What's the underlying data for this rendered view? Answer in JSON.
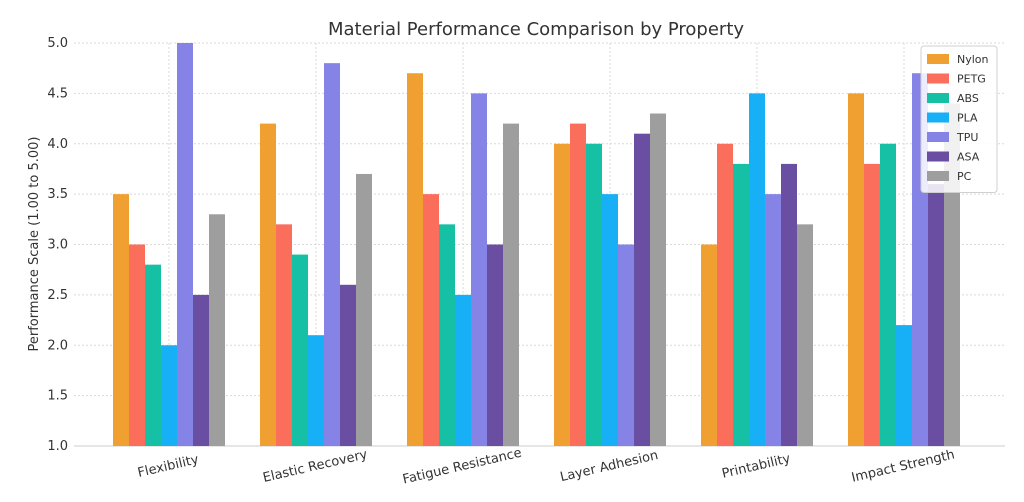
{
  "chart_data": {
    "type": "bar",
    "title": "Material Performance Comparison by Property",
    "xlabel": "",
    "ylabel": "Performance Scale (1.00 to 5.00)",
    "ylim": [
      1.0,
      5.0
    ],
    "yticks": [
      "1.0",
      "1.5",
      "2.0",
      "2.5",
      "3.0",
      "3.5",
      "4.0",
      "4.5",
      "5.0"
    ],
    "grid": true,
    "legend_position": "top-right",
    "categories": [
      "Flexibility",
      "Elastic Recovery",
      "Fatigue Resistance",
      "Layer Adhesion",
      "Printability",
      "Impact Strength"
    ],
    "series": [
      {
        "name": "Nylon",
        "color": "#f0a030",
        "values": [
          3.5,
          4.2,
          4.7,
          4.0,
          3.0,
          4.5
        ]
      },
      {
        "name": "PETG",
        "color": "#fb6e5c",
        "values": [
          3.0,
          3.2,
          3.5,
          4.2,
          4.0,
          3.8
        ]
      },
      {
        "name": "ABS",
        "color": "#16c0a4",
        "values": [
          2.8,
          2.9,
          3.2,
          4.0,
          3.8,
          4.0
        ]
      },
      {
        "name": "PLA",
        "color": "#17aff6",
        "values": [
          2.0,
          2.1,
          2.5,
          3.5,
          4.5,
          2.2
        ]
      },
      {
        "name": "TPU",
        "color": "#8683e6",
        "values": [
          5.0,
          4.8,
          4.5,
          3.0,
          3.5,
          4.7
        ]
      },
      {
        "name": "ASA",
        "color": "#6a4ea2",
        "values": [
          2.5,
          2.6,
          3.0,
          4.1,
          3.8,
          3.6
        ]
      },
      {
        "name": "PC",
        "color": "#9e9e9e",
        "values": [
          3.3,
          3.7,
          4.2,
          4.3,
          3.2,
          4.4
        ]
      }
    ]
  }
}
